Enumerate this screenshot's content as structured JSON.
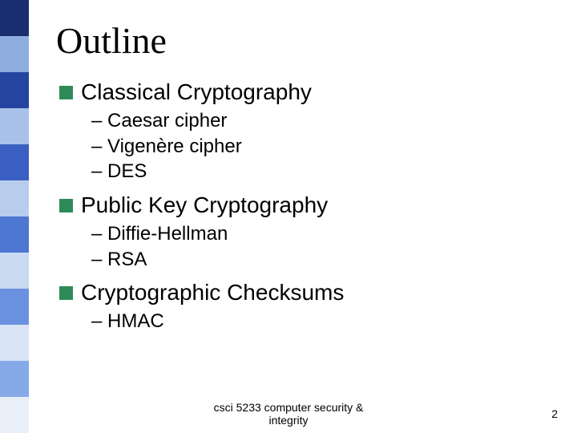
{
  "sidebar_colors": [
    "#1a2e6f",
    "#8faee0",
    "#2544a0",
    "#a7c1e8",
    "#3a5fc2",
    "#b8cdec",
    "#4e77d2",
    "#c9d9f0",
    "#6a91df",
    "#d9e4f4",
    "#86aae8",
    "#e8eff9"
  ],
  "title": "Outline",
  "bullet_color": "#2e8b57",
  "topics": [
    {
      "text": "Classical Cryptography",
      "subs": [
        "Caesar cipher",
        "Vigenère cipher",
        "DES"
      ]
    },
    {
      "text": "Public Key Cryptography",
      "subs": [
        "Diffie-Hellman",
        "RSA"
      ]
    },
    {
      "text": "Cryptographic Checksums",
      "subs": [
        "HMAC"
      ]
    }
  ],
  "footer_line1": "csci 5233 computer security &",
  "footer_line2": "integrity",
  "page_number": "2"
}
